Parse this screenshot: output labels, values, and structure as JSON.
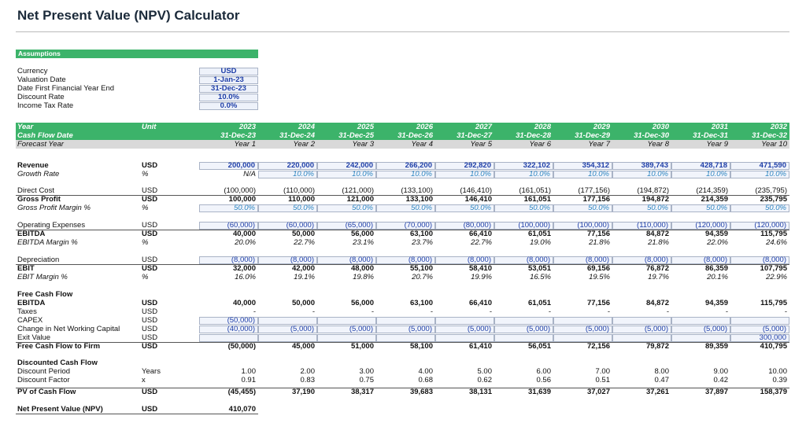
{
  "title": "Net Present Value (NPV) Calculator",
  "assumptions": {
    "header": "Assumptions",
    "rows": [
      {
        "label": "Currency",
        "value": "USD"
      },
      {
        "label": "Valuation Date",
        "value": "1-Jan-23"
      },
      {
        "label": "Date First Financial Year End",
        "value": "31-Dec-23"
      },
      {
        "label": "Discount Rate",
        "value": "10.0%"
      },
      {
        "label": "Income Tax Rate",
        "value": "0.0%"
      }
    ]
  },
  "table": {
    "sections": [
      {
        "rows": [
          {
            "label": "Year",
            "unit": "Unit",
            "values": [
              "2023",
              "2024",
              "2025",
              "2026",
              "2027",
              "2028",
              "2029",
              "2030",
              "2031",
              "2032"
            ]
          },
          {
            "label": "Cash Flow Date",
            "values": [
              "31-Dec-23",
              "31-Dec-24",
              "31-Dec-25",
              "31-Dec-26",
              "31-Dec-27",
              "31-Dec-28",
              "31-Dec-29",
              "31-Dec-30",
              "31-Dec-31",
              "31-Dec-32"
            ]
          },
          {
            "label": "Forecast Year",
            "values": [
              "Year 1",
              "Year 2",
              "Year 3",
              "Year 4",
              "Year 5",
              "Year 6",
              "Year 7",
              "Year 8",
              "Year 9",
              "Year 10"
            ]
          }
        ]
      },
      {
        "rows": [
          {
            "label": "Revenue",
            "unit": "USD",
            "values": [
              "200,000",
              "220,000",
              "242,000",
              "266,200",
              "292,820",
              "322,102",
              "354,312",
              "389,743",
              "428,718",
              "471,590"
            ]
          },
          {
            "label": "Growth Rate",
            "unit": "%",
            "values": [
              "N/A",
              "10.0%",
              "10.0%",
              "10.0%",
              "10.0%",
              "10.0%",
              "10.0%",
              "10.0%",
              "10.0%",
              "10.0%"
            ]
          }
        ]
      },
      {
        "rows": [
          {
            "label": "Direct Cost",
            "unit": "USD",
            "values": [
              "(100,000)",
              "(110,000)",
              "(121,000)",
              "(133,100)",
              "(146,410)",
              "(161,051)",
              "(177,156)",
              "(194,872)",
              "(214,359)",
              "(235,795)"
            ]
          },
          {
            "label": "Gross Profit",
            "unit": "USD",
            "values": [
              "100,000",
              "110,000",
              "121,000",
              "133,100",
              "146,410",
              "161,051",
              "177,156",
              "194,872",
              "214,359",
              "235,795"
            ]
          },
          {
            "label": "Gross Profit Margin %",
            "unit": "%",
            "values": [
              "50.0%",
              "50.0%",
              "50.0%",
              "50.0%",
              "50.0%",
              "50.0%",
              "50.0%",
              "50.0%",
              "50.0%",
              "50.0%"
            ]
          }
        ]
      },
      {
        "rows": [
          {
            "label": "Operating Expenses",
            "unit": "USD",
            "values": [
              "(60,000)",
              "(60,000)",
              "(65,000)",
              "(70,000)",
              "(80,000)",
              "(100,000)",
              "(100,000)",
              "(110,000)",
              "(120,000)",
              "(120,000)"
            ]
          },
          {
            "label": "EBITDA",
            "unit": "USD",
            "values": [
              "40,000",
              "50,000",
              "56,000",
              "63,100",
              "66,410",
              "61,051",
              "77,156",
              "84,872",
              "94,359",
              "115,795"
            ]
          },
          {
            "label": "EBITDA Margin %",
            "unit": "%",
            "values": [
              "20.0%",
              "22.7%",
              "23.1%",
              "23.7%",
              "22.7%",
              "19.0%",
              "21.8%",
              "21.8%",
              "22.0%",
              "24.6%"
            ]
          }
        ]
      },
      {
        "rows": [
          {
            "label": "Depreciation",
            "unit": "USD",
            "values": [
              "(8,000)",
              "(8,000)",
              "(8,000)",
              "(8,000)",
              "(8,000)",
              "(8,000)",
              "(8,000)",
              "(8,000)",
              "(8,000)",
              "(8,000)"
            ]
          },
          {
            "label": "EBIT",
            "unit": "USD",
            "values": [
              "32,000",
              "42,000",
              "48,000",
              "55,100",
              "58,410",
              "53,051",
              "69,156",
              "76,872",
              "86,359",
              "107,795"
            ]
          },
          {
            "label": "EBIT Margin %",
            "unit": "%",
            "values": [
              "16.0%",
              "19.1%",
              "19.8%",
              "20.7%",
              "19.9%",
              "16.5%",
              "19.5%",
              "19.7%",
              "20.1%",
              "22.9%"
            ]
          }
        ]
      },
      {
        "rows": [
          {
            "label": "Free Cash Flow"
          },
          {
            "label": "EBITDA",
            "unit": "USD",
            "values": [
              "40,000",
              "50,000",
              "56,000",
              "63,100",
              "66,410",
              "61,051",
              "77,156",
              "84,872",
              "94,359",
              "115,795"
            ]
          },
          {
            "label": "Taxes",
            "unit": "USD",
            "values": [
              "-",
              "-",
              "-",
              "-",
              "-",
              "-",
              "-",
              "-",
              "-",
              "-"
            ]
          },
          {
            "label": "CAPEX",
            "unit": "USD",
            "values": [
              "(50,000)",
              null,
              null,
              null,
              null,
              null,
              null,
              null,
              null,
              null
            ]
          },
          {
            "label": "Change in Net Working Capital",
            "unit": "USD",
            "values": [
              "(40,000)",
              "(5,000)",
              "(5,000)",
              "(5,000)",
              "(5,000)",
              "(5,000)",
              "(5,000)",
              "(5,000)",
              "(5,000)",
              "(5,000)"
            ]
          },
          {
            "label": "Exit Value",
            "unit": "USD",
            "values": [
              null,
              null,
              null,
              null,
              null,
              null,
              null,
              null,
              null,
              "300,000"
            ]
          },
          {
            "label": "Free Cash Flow to Firm",
            "unit": "USD",
            "values": [
              "(50,000)",
              "45,000",
              "51,000",
              "58,100",
              "61,410",
              "56,051",
              "72,156",
              "79,872",
              "89,359",
              "410,795"
            ]
          }
        ]
      },
      {
        "rows": [
          {
            "label": "Discounted Cash Flow"
          },
          {
            "label": "Discount Period",
            "unit": "Years",
            "values": [
              "1.00",
              "2.00",
              "3.00",
              "4.00",
              "5.00",
              "6.00",
              "7.00",
              "8.00",
              "9.00",
              "10.00"
            ]
          },
          {
            "label": "Discount Factor",
            "unit": "x",
            "values": [
              "0.91",
              "0.83",
              "0.75",
              "0.68",
              "0.62",
              "0.56",
              "0.51",
              "0.47",
              "0.42",
              "0.39"
            ]
          }
        ]
      },
      {
        "rows": [
          {
            "label": "PV of Cash Flow",
            "unit": "USD",
            "values": [
              "(45,455)",
              "37,190",
              "38,317",
              "39,683",
              "38,131",
              "31,639",
              "37,027",
              "37,261",
              "37,897",
              "158,379"
            ]
          }
        ]
      },
      {
        "rows": [
          {
            "label": "Net Present Value (NPV)",
            "unit": "USD",
            "values": [
              "410,070"
            ]
          }
        ]
      }
    ]
  }
}
